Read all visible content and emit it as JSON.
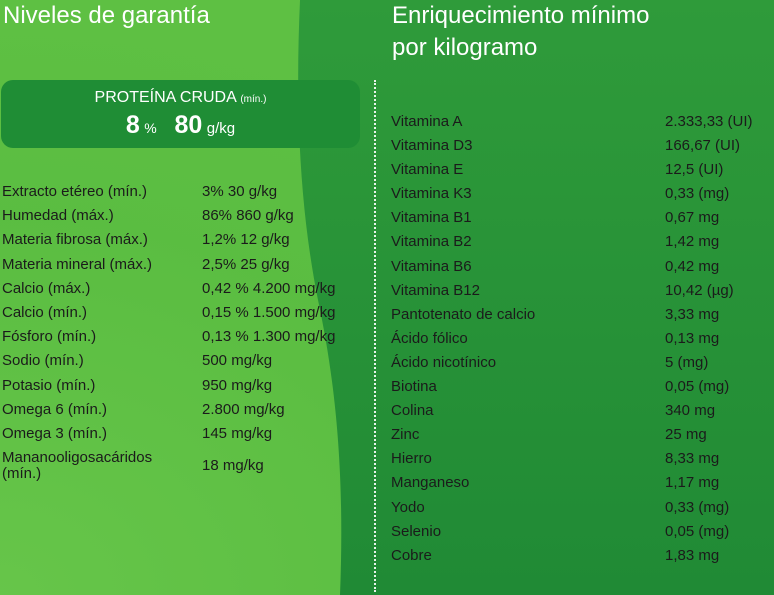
{
  "left": {
    "title": "Niveles de garantía",
    "protein": {
      "title": "PROTEÍNA CRUDA",
      "title_sub": "(mín.)",
      "percent": "8",
      "percent_unit": "%",
      "amount": "80",
      "amount_unit": "g/kg"
    },
    "rows": [
      {
        "label": "Extracto etéreo (mín.)",
        "value": "3% 30 g/kg"
      },
      {
        "label": "Humedad (máx.)",
        "value": "86% 860 g/kg"
      },
      {
        "label": "Materia fibrosa (máx.)",
        "value": "1,2% 12 g/kg"
      },
      {
        "label": "Materia mineral (máx.)",
        "value": "2,5% 25 g/kg"
      },
      {
        "label": "Calcio (máx.)",
        "value": "0,42 % 4.200 mg/kg"
      },
      {
        "label": "Calcio (mín.)",
        "value": "0,15 % 1.500 mg/kg"
      },
      {
        "label": "Fósforo (mín.)",
        "value": "0,13 % 1.300 mg/kg"
      },
      {
        "label": "Sodio (mín.)",
        "value": "500 mg/kg"
      },
      {
        "label": "Potasio (mín.)",
        "value": "950 mg/kg"
      },
      {
        "label": "Omega 6 (mín.)",
        "value": "2.800 mg/kg"
      },
      {
        "label": "Omega 3 (mín.)",
        "value": "145 mg/kg"
      }
    ],
    "last_row": {
      "label_line1": "Mananooligosacáridos",
      "label_line2": "(mín.)",
      "value": "18 mg/kg"
    }
  },
  "right": {
    "title_line1": "Enriquecimiento mínimo",
    "title_line2": "por kilogramo",
    "rows": [
      {
        "label": "Vitamina A",
        "value": "2.333,33 (UI)"
      },
      {
        "label": "Vitamina D3",
        "value": "166,67 (UI)"
      },
      {
        "label": "Vitamina E",
        "value": "12,5 (UI)"
      },
      {
        "label": "Vitamina K3",
        "value": "0,33 (mg)"
      },
      {
        "label": "Vitamina B1",
        "value": "0,67 mg"
      },
      {
        "label": "Vitamina B2",
        "value": "1,42 mg"
      },
      {
        "label": "Vitamina B6",
        "value": "0,42 mg"
      },
      {
        "label": "Vitamina B12",
        "value": "10,42 (µg)"
      },
      {
        "label": "Pantotenato de calcio",
        "value": "3,33 mg"
      },
      {
        "label": "Ácido fólico",
        "value": "0,13 mg"
      },
      {
        "label": "Ácido nicotínico",
        "value": "5 (mg)"
      },
      {
        "label": "Biotina",
        "value": "0,05 (mg)"
      },
      {
        "label": "Colina",
        "value": "340 mg"
      },
      {
        "label": "Zinc",
        "value": "25 mg"
      },
      {
        "label": "Hierro",
        "value": "8,33 mg"
      },
      {
        "label": "Manganeso",
        "value": "1,17 mg"
      },
      {
        "label": "Yodo",
        "value": "0,33 (mg)"
      },
      {
        "label": "Selenio",
        "value": "0,05 (mg)"
      },
      {
        "label": "Cobre",
        "value": "1,83 mg"
      }
    ]
  },
  "colors": {
    "background_light": "#5ec043",
    "background_dark": "#208a35",
    "protein_box": "#1f8d35",
    "heading_text": "#ffffff",
    "body_text": "#1b1b1b"
  }
}
